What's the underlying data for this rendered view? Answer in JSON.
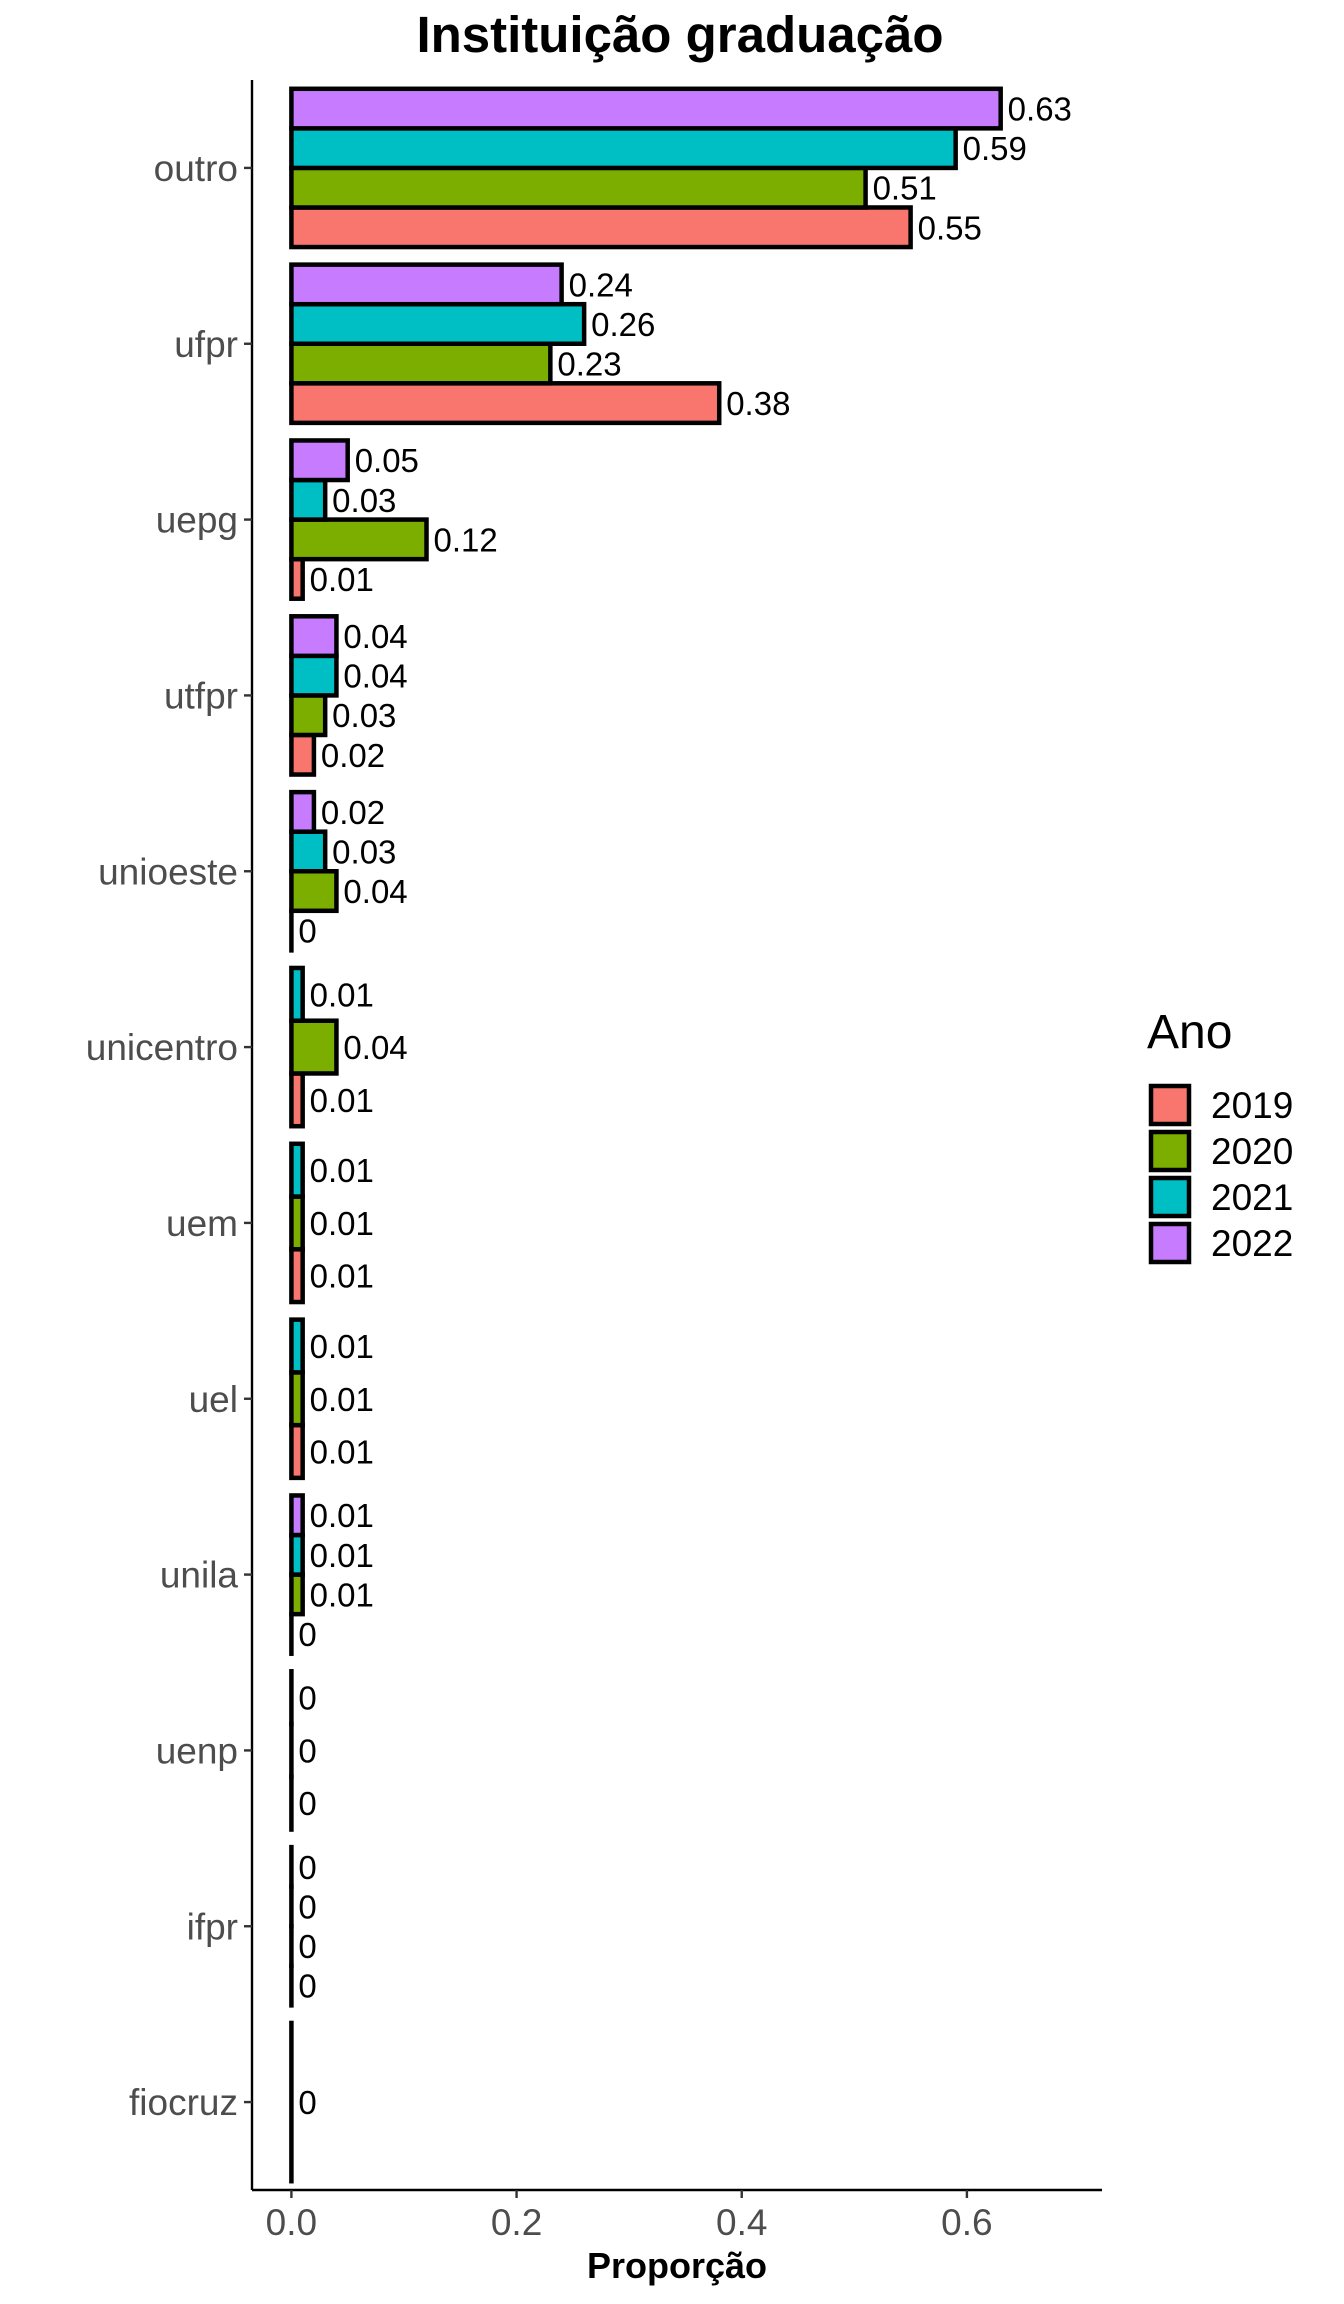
{
  "chart_data": {
    "type": "bar",
    "orientation": "horizontal",
    "title": "Instituição graduação",
    "xlabel": "Proporção",
    "ylabel": "",
    "xlim": [
      -0.035,
      0.72
    ],
    "x_ticks": [
      0.0,
      0.2,
      0.4,
      0.6
    ],
    "x_tick_labels": [
      "0.0",
      "0.2",
      "0.4",
      "0.6"
    ],
    "grid": false,
    "legend_title": "Ano",
    "legend_position": "right",
    "categories": [
      "outro",
      "ufpr",
      "uepg",
      "utfpr",
      "unioeste",
      "unicentro",
      "uem",
      "uel",
      "unila",
      "uenp",
      "ifpr",
      "fiocruz"
    ],
    "series": [
      {
        "name": "2019",
        "color": "#F8766D",
        "values": [
          0.55,
          0.38,
          0.01,
          0.02,
          0,
          0.01,
          0.01,
          0.01,
          0,
          0,
          0,
          0
        ],
        "labels": [
          "0.55",
          "0.38",
          "0.01",
          "0.02",
          "0",
          "0.01",
          "0.01",
          "0.01",
          "0",
          "0",
          "0",
          "0"
        ]
      },
      {
        "name": "2020",
        "color": "#7CAE00",
        "values": [
          0.51,
          0.23,
          0.12,
          0.03,
          0.04,
          0.04,
          0.01,
          0.01,
          0.01,
          0,
          0,
          null
        ],
        "labels": [
          "0.51",
          "0.23",
          "0.12",
          "0.03",
          "0.04",
          "0.04",
          "0.01",
          "0.01",
          "0.01",
          "0",
          "0",
          null
        ]
      },
      {
        "name": "2021",
        "color": "#00BFC4",
        "values": [
          0.59,
          0.26,
          0.03,
          0.04,
          0.03,
          0.01,
          0.01,
          0.01,
          0.01,
          0,
          0,
          null
        ],
        "labels": [
          "0.59",
          "0.26",
          "0.03",
          "0.04",
          "0.03",
          "0.01",
          "0.01",
          "0.01",
          "0.01",
          "0",
          "0",
          null
        ]
      },
      {
        "name": "2022",
        "color": "#C77CFF",
        "values": [
          0.63,
          0.24,
          0.05,
          0.04,
          0.02,
          null,
          null,
          null,
          0.01,
          null,
          0,
          null
        ],
        "labels": [
          "0.63",
          "0.24",
          "0.05",
          "0.04",
          "0.02",
          null,
          null,
          null,
          "0.01",
          null,
          "0",
          null
        ]
      }
    ]
  }
}
